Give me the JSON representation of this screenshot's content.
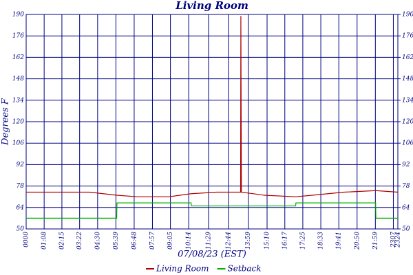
{
  "chart_data": {
    "type": "line",
    "title": "Living Room",
    "y_label": "Degrees F",
    "x_label": "07/08/23 (EST)",
    "x": [
      "00:00",
      "02:00",
      "04:00",
      "05:42",
      "05:43",
      "07:00",
      "09:00",
      "10:23",
      "10:24",
      "12:00",
      "13:30",
      "13:31",
      "13:32",
      "13:33",
      "15:00",
      "16:58",
      "16:59",
      "18:00",
      "20:00",
      "22:00",
      "22:01",
      "23:24"
    ],
    "series": [
      {
        "name": "Living Room",
        "color": "#b00000",
        "values": [
          74,
          74,
          74,
          72,
          72,
          71,
          71,
          73,
          73,
          74,
          74,
          189,
          130,
          74,
          72,
          71,
          71,
          72,
          74,
          75,
          75,
          74
        ]
      },
      {
        "name": "Setback",
        "color": "#00b000",
        "values": [
          57,
          57,
          57,
          57,
          67,
          67,
          67,
          67,
          65,
          65,
          65,
          65,
          65,
          65,
          65,
          65,
          67,
          67,
          67,
          67,
          57,
          57
        ]
      }
    ],
    "xticks": [
      "0000",
      "01:08",
      "02:15",
      "03:22",
      "04:30",
      "05:39",
      "06:48",
      "07:57",
      "09:05",
      "10:14",
      "11:29",
      "12:44",
      "13:59",
      "15:10",
      "16:17",
      "17:25",
      "18:33",
      "19:41",
      "20:50",
      "21:59",
      "2307",
      "2324"
    ],
    "ylim": [
      50,
      190
    ],
    "yticks": [
      50,
      64,
      78,
      92,
      106,
      120,
      134,
      148,
      162,
      176,
      190
    ],
    "y2lim": [
      50,
      190
    ],
    "y2ticks": [
      50,
      64,
      78,
      92,
      106,
      120,
      134,
      148,
      162,
      176,
      190
    ],
    "grid": true,
    "grid_color": "#000080",
    "legend": "bottom"
  }
}
